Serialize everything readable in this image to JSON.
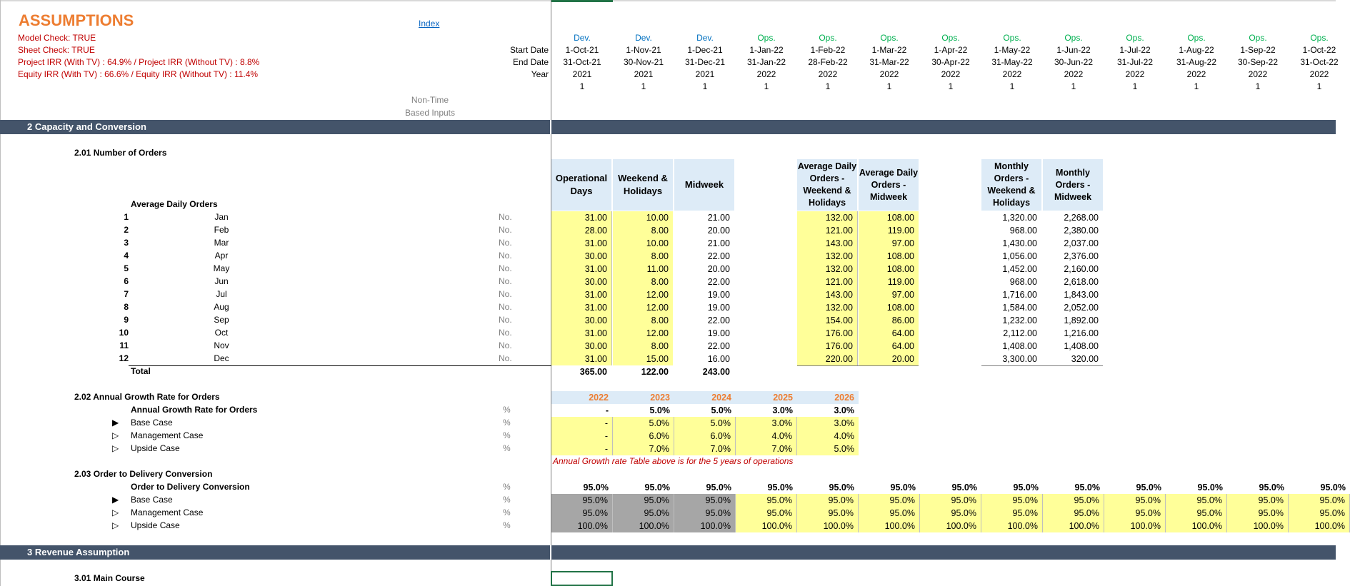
{
  "title": "ASSUMPTIONS",
  "index_link": "Index",
  "checks": {
    "model": "Model Check: TRUE",
    "sheet": "Sheet Check: TRUE",
    "project_irr": "Project IRR  (With TV) : 64.9%  / Project IRR (Without TV) : 8.8%",
    "equity_irr": "Equity IRR  (With TV) : 66.6%  / Equity IRR (Without TV) : 11.4%"
  },
  "timeline_labels": {
    "start": "Start Date",
    "end": "End Date",
    "year": "Year"
  },
  "non_time_label": [
    "Non-Time",
    "Based Inputs"
  ],
  "timeline": [
    {
      "phase": "Dev.",
      "start": "1-Oct-21",
      "end": "31-Oct-21",
      "year": "2021",
      "flag": "1"
    },
    {
      "phase": "Dev.",
      "start": "1-Nov-21",
      "end": "30-Nov-21",
      "year": "2021",
      "flag": "1"
    },
    {
      "phase": "Dev.",
      "start": "1-Dec-21",
      "end": "31-Dec-21",
      "year": "2021",
      "flag": "1"
    },
    {
      "phase": "Ops.",
      "start": "1-Jan-22",
      "end": "31-Jan-22",
      "year": "2022",
      "flag": "1"
    },
    {
      "phase": "Ops.",
      "start": "1-Feb-22",
      "end": "28-Feb-22",
      "year": "2022",
      "flag": "1"
    },
    {
      "phase": "Ops.",
      "start": "1-Mar-22",
      "end": "31-Mar-22",
      "year": "2022",
      "flag": "1"
    },
    {
      "phase": "Ops.",
      "start": "1-Apr-22",
      "end": "30-Apr-22",
      "year": "2022",
      "flag": "1"
    },
    {
      "phase": "Ops.",
      "start": "1-May-22",
      "end": "31-May-22",
      "year": "2022",
      "flag": "1"
    },
    {
      "phase": "Ops.",
      "start": "1-Jun-22",
      "end": "30-Jun-22",
      "year": "2022",
      "flag": "1"
    },
    {
      "phase": "Ops.",
      "start": "1-Jul-22",
      "end": "31-Jul-22",
      "year": "2022",
      "flag": "1"
    },
    {
      "phase": "Ops.",
      "start": "1-Aug-22",
      "end": "31-Aug-22",
      "year": "2022",
      "flag": "1"
    },
    {
      "phase": "Ops.",
      "start": "1-Sep-22",
      "end": "30-Sep-22",
      "year": "2022",
      "flag": "1"
    },
    {
      "phase": "Ops.",
      "start": "1-Oct-22",
      "end": "31-Oct-22",
      "year": "2022",
      "flag": "1"
    }
  ],
  "sections": {
    "s2": "2  Capacity and Conversion",
    "s201": "2.01  Number of Orders",
    "s202": "2.02  Annual Growth Rate for Orders",
    "s203": "2.03  Order to Delivery Conversion",
    "s3": "3  Revenue Assumption",
    "s301": "3.01  Main Course"
  },
  "orders": {
    "group_label": "Average Daily Orders",
    "unit": "No.",
    "total_label": "Total",
    "headers": {
      "op_days": "Operational Days",
      "weekend": "Weekend & Holidays",
      "midweek": "Midweek",
      "avg_weekend": "Average Daily Orders - Weekend & Holidays",
      "avg_midweek": "Average Daily Orders - Midweek",
      "mon_weekend": "Monthly Orders - Weekend & Holidays",
      "mon_midweek": "Monthly Orders - Midweek"
    },
    "rows": [
      {
        "n": "1",
        "m": "Jan",
        "od": "31.00",
        "wh": "10.00",
        "mw": "21.00",
        "aw": "132.00",
        "am": "108.00",
        "mwh": "1,320.00",
        "mmw": "2,268.00"
      },
      {
        "n": "2",
        "m": "Feb",
        "od": "28.00",
        "wh": "8.00",
        "mw": "20.00",
        "aw": "121.00",
        "am": "119.00",
        "mwh": "968.00",
        "mmw": "2,380.00"
      },
      {
        "n": "3",
        "m": "Mar",
        "od": "31.00",
        "wh": "10.00",
        "mw": "21.00",
        "aw": "143.00",
        "am": "97.00",
        "mwh": "1,430.00",
        "mmw": "2,037.00"
      },
      {
        "n": "4",
        "m": "Apr",
        "od": "30.00",
        "wh": "8.00",
        "mw": "22.00",
        "aw": "132.00",
        "am": "108.00",
        "mwh": "1,056.00",
        "mmw": "2,376.00"
      },
      {
        "n": "5",
        "m": "May",
        "od": "31.00",
        "wh": "11.00",
        "mw": "20.00",
        "aw": "132.00",
        "am": "108.00",
        "mwh": "1,452.00",
        "mmw": "2,160.00"
      },
      {
        "n": "6",
        "m": "Jun",
        "od": "30.00",
        "wh": "8.00",
        "mw": "22.00",
        "aw": "121.00",
        "am": "119.00",
        "mwh": "968.00",
        "mmw": "2,618.00"
      },
      {
        "n": "7",
        "m": "Jul",
        "od": "31.00",
        "wh": "12.00",
        "mw": "19.00",
        "aw": "143.00",
        "am": "97.00",
        "mwh": "1,716.00",
        "mmw": "1,843.00"
      },
      {
        "n": "8",
        "m": "Aug",
        "od": "31.00",
        "wh": "12.00",
        "mw": "19.00",
        "aw": "132.00",
        "am": "108.00",
        "mwh": "1,584.00",
        "mmw": "2,052.00"
      },
      {
        "n": "9",
        "m": "Sep",
        "od": "30.00",
        "wh": "8.00",
        "mw": "22.00",
        "aw": "154.00",
        "am": "86.00",
        "mwh": "1,232.00",
        "mmw": "1,892.00"
      },
      {
        "n": "10",
        "m": "Oct",
        "od": "31.00",
        "wh": "12.00",
        "mw": "19.00",
        "aw": "176.00",
        "am": "64.00",
        "mwh": "2,112.00",
        "mmw": "1,216.00"
      },
      {
        "n": "11",
        "m": "Nov",
        "od": "30.00",
        "wh": "8.00",
        "mw": "22.00",
        "aw": "176.00",
        "am": "64.00",
        "mwh": "1,408.00",
        "mmw": "1,408.00"
      },
      {
        "n": "12",
        "m": "Dec",
        "od": "31.00",
        "wh": "15.00",
        "mw": "16.00",
        "aw": "220.00",
        "am": "20.00",
        "mwh": "3,300.00",
        "mmw": "320.00"
      }
    ],
    "totals": {
      "od": "365.00",
      "wh": "122.00",
      "mw": "243.00"
    }
  },
  "growth": {
    "years": [
      "2022",
      "2023",
      "2024",
      "2025",
      "2026"
    ],
    "unit": "%",
    "main": {
      "label": "Annual Growth Rate for Orders",
      "values": [
        "-",
        "5.0%",
        "5.0%",
        "3.0%",
        "3.0%"
      ]
    },
    "cases": [
      {
        "label": "Base Case",
        "selected": true,
        "values": [
          "-",
          "5.0%",
          "5.0%",
          "3.0%",
          "3.0%"
        ]
      },
      {
        "label": "Management Case",
        "selected": false,
        "values": [
          "-",
          "6.0%",
          "6.0%",
          "4.0%",
          "4.0%"
        ]
      },
      {
        "label": "Upside Case",
        "selected": false,
        "values": [
          "-",
          "7.0%",
          "7.0%",
          "7.0%",
          "5.0%"
        ]
      }
    ],
    "note": "Annual Growth rate Table above is for the 5 years of operations"
  },
  "conversion": {
    "unit": "%",
    "main": {
      "label": "Order to Delivery Conversion",
      "values": [
        "95.0%",
        "95.0%",
        "95.0%",
        "95.0%",
        "95.0%",
        "95.0%",
        "95.0%",
        "95.0%",
        "95.0%",
        "95.0%",
        "95.0%",
        "95.0%",
        "95.0%"
      ]
    },
    "cases": [
      {
        "label": "Base Case",
        "selected": true,
        "values": [
          "95.0%",
          "95.0%",
          "95.0%",
          "95.0%",
          "95.0%",
          "95.0%",
          "95.0%",
          "95.0%",
          "95.0%",
          "95.0%",
          "95.0%",
          "95.0%",
          "95.0%"
        ]
      },
      {
        "label": "Management Case",
        "selected": false,
        "values": [
          "95.0%",
          "95.0%",
          "95.0%",
          "95.0%",
          "95.0%",
          "95.0%",
          "95.0%",
          "95.0%",
          "95.0%",
          "95.0%",
          "95.0%",
          "95.0%",
          "95.0%"
        ]
      },
      {
        "label": "Upside Case",
        "selected": false,
        "values": [
          "100.0%",
          "100.0%",
          "100.0%",
          "100.0%",
          "100.0%",
          "100.0%",
          "100.0%",
          "100.0%",
          "100.0%",
          "100.0%",
          "100.0%",
          "100.0%",
          "100.0%"
        ]
      }
    ]
  },
  "icons": {
    "selected": "filled-triangle-icon",
    "unselected": "outline-triangle-icon"
  }
}
